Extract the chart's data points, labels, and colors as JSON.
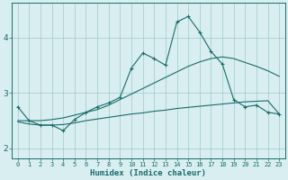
{
  "xlabel": "Humidex (Indice chaleur)",
  "x": [
    0,
    1,
    2,
    3,
    4,
    5,
    6,
    7,
    8,
    9,
    10,
    11,
    12,
    13,
    14,
    15,
    16,
    17,
    18,
    19,
    20,
    21,
    22,
    23
  ],
  "line_main": [
    2.75,
    2.5,
    2.42,
    2.42,
    2.32,
    2.52,
    2.65,
    2.75,
    2.82,
    2.92,
    3.45,
    3.72,
    3.62,
    3.5,
    4.28,
    4.38,
    4.1,
    3.75,
    3.52,
    2.88,
    2.75,
    2.78,
    2.65,
    2.62
  ],
  "line_upper": [
    2.5,
    2.5,
    2.5,
    2.52,
    2.55,
    2.6,
    2.65,
    2.7,
    2.78,
    2.88,
    2.98,
    3.08,
    3.18,
    3.28,
    3.38,
    3.48,
    3.56,
    3.62,
    3.65,
    3.62,
    3.55,
    3.48,
    3.4,
    3.3
  ],
  "line_lower": [
    2.48,
    2.44,
    2.42,
    2.42,
    2.43,
    2.46,
    2.5,
    2.53,
    2.56,
    2.59,
    2.62,
    2.64,
    2.67,
    2.69,
    2.72,
    2.74,
    2.76,
    2.78,
    2.8,
    2.82,
    2.84,
    2.85,
    2.86,
    2.62
  ],
  "color": "#1a6b6b",
  "background_color": "#d8eef0",
  "grid_color": "#a0c8cc",
  "ylim": [
    1.82,
    4.62
  ],
  "yticks": [
    2,
    3,
    4
  ],
  "figsize": [
    3.2,
    2.0
  ],
  "dpi": 100
}
